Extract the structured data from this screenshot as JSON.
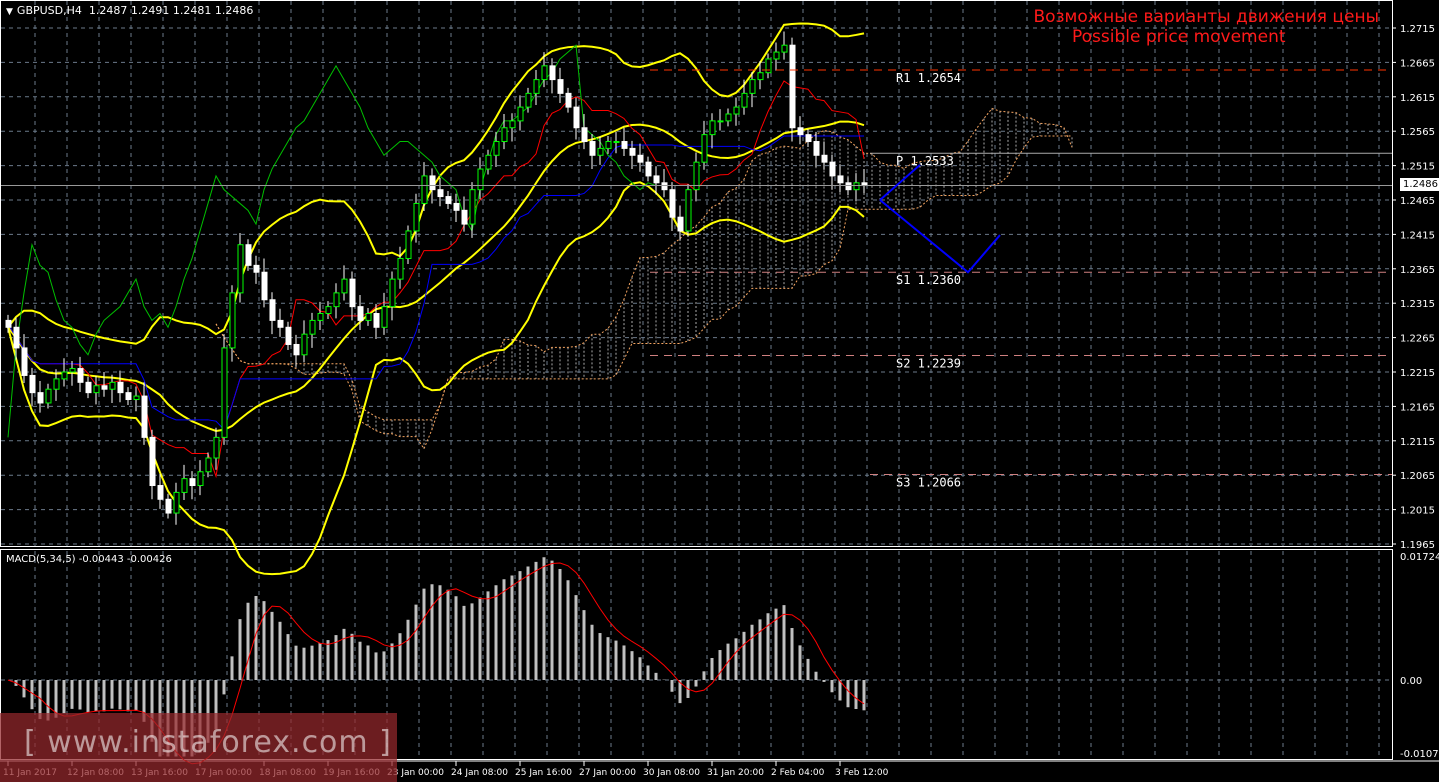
{
  "header": {
    "symbol": "GBPUSD,H4",
    "ohlc": "1.2487 1.2491 1.2481 1.2486"
  },
  "annotation": {
    "ru": "Возможные варианты движения цены",
    "en": "Possible price movement"
  },
  "watermark": "[ www.instaforex.com ]",
  "current_price": "1.2486",
  "macd_label": "MACD(5,34,5) -0.00443 -0.00426",
  "colors": {
    "bollinger": "#ffff00",
    "tenkan": "#ff0000",
    "kijun": "#0000ff",
    "chikou": "#00c000",
    "cloud": "#f4a460",
    "forecast": "#0000ff",
    "pivot_r": "#ff3300",
    "pivot_s": "#d08080",
    "bull": "#ffffff",
    "bear": "#ffffff",
    "macd_hist": "#c0c0c0",
    "macd_signal": "#ff0000",
    "text": "#ff1a1a"
  },
  "chart_data": {
    "type": "candlestick",
    "symbol": "GBPUSD",
    "timeframe": "H4",
    "ylim": [
      1.1965,
      1.2715
    ],
    "y_ticks": [
      "1.2715",
      "1.2665",
      "1.2615",
      "1.2565",
      "1.2515",
      "1.2465",
      "1.2415",
      "1.2365",
      "1.2315",
      "1.2265",
      "1.2215",
      "1.2165",
      "1.2115",
      "1.2065",
      "1.2015",
      "1.1965"
    ],
    "x_ticks": [
      "11 Jan 2017",
      "12 Jan 08:00",
      "13 Jan 16:00",
      "17 Jan 00:00",
      "18 Jan 08:00",
      "19 Jan 16:00",
      "23 Jan 00:00",
      "24 Jan 08:00",
      "25 Jan 16:00",
      "27 Jan 00:00",
      "30 Jan 08:00",
      "31 Jan 20:00",
      "2 Feb 04:00",
      "3 Feb 12:00"
    ],
    "closes": [
      1.228,
      1.225,
      1.221,
      1.2185,
      1.217,
      1.219,
      1.2205,
      1.2215,
      1.222,
      1.22,
      1.2185,
      1.2195,
      1.219,
      1.22,
      1.2185,
      1.2175,
      1.218,
      1.212,
      1.205,
      1.203,
      1.201,
      1.204,
      1.206,
      1.205,
      1.207,
      1.209,
      1.212,
      1.225,
      1.233,
      1.24,
      1.237,
      1.236,
      1.232,
      1.229,
      1.228,
      1.2255,
      1.224,
      1.227,
      1.229,
      1.23,
      1.231,
      1.233,
      1.235,
      1.231,
      1.229,
      1.23,
      1.228,
      1.231,
      1.235,
      1.238,
      1.242,
      1.246,
      1.25,
      1.248,
      1.247,
      1.246,
      1.245,
      1.243,
      1.248,
      1.251,
      1.253,
      1.255,
      1.257,
      1.258,
      1.26,
      1.262,
      1.264,
      1.266,
      1.264,
      1.262,
      1.26,
      1.257,
      1.255,
      1.253,
      1.254,
      1.255,
      1.255,
      1.254,
      1.253,
      1.252,
      1.25,
      1.249,
      1.248,
      1.244,
      1.242,
      1.248,
      1.252,
      1.256,
      1.258,
      1.258,
      1.259,
      1.26,
      1.262,
      1.264,
      1.265,
      1.267,
      1.268,
      1.269,
      1.257,
      1.256,
      1.255,
      1.253,
      1.252,
      1.25,
      1.249,
      1.248,
      1.249,
      1.2486
    ],
    "indicators": [
      "Bollinger Bands",
      "Ichimoku Kinko Hyo",
      "MACD(5,34,5)"
    ],
    "pivots": [
      {
        "label": "R1",
        "value": "1.2654"
      },
      {
        "label": "P",
        "value": "1.2533"
      },
      {
        "label": "S1",
        "value": "1.2360"
      },
      {
        "label": "S2",
        "value": "1.2239"
      },
      {
        "label": "S3",
        "value": "1.2066"
      }
    ],
    "forecast_paths": [
      [
        [
          109,
          1.2465
        ],
        [
          114,
          1.2516
        ]
      ],
      [
        [
          109,
          1.2465
        ],
        [
          120,
          1.236
        ],
        [
          124,
          1.2414
        ]
      ]
    ],
    "macd": {
      "ylim": [
        -0.01073,
        0.01724
      ],
      "y_ticks": [
        "0.01724",
        "0.00",
        "-0.01073"
      ],
      "main": -0.00443,
      "signal": -0.00426
    }
  }
}
